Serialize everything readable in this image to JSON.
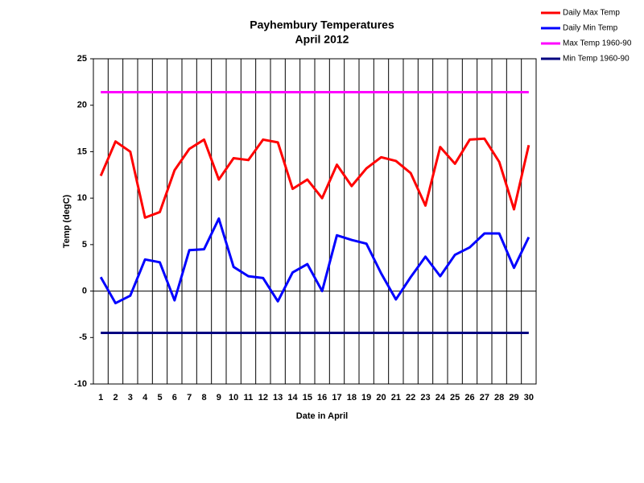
{
  "chart_data": {
    "type": "line",
    "title": "Payhembury Temperatures",
    "subtitle": "April 2012",
    "x_label": "Date in April",
    "y_label": "Temp (degC)",
    "categories": [
      "1",
      "2",
      "3",
      "4",
      "5",
      "6",
      "7",
      "8",
      "9",
      "10",
      "11",
      "12",
      "13",
      "14",
      "15",
      "16",
      "17",
      "18",
      "19",
      "20",
      "21",
      "22",
      "23",
      "24",
      "25",
      "26",
      "27",
      "28",
      "29",
      "30"
    ],
    "series": [
      {
        "name": "Daily Max Temp",
        "color": "#ff0000",
        "values": [
          12.4,
          16.1,
          15.0,
          7.9,
          8.5,
          13.0,
          15.3,
          16.3,
          12.0,
          14.3,
          14.1,
          16.3,
          16.0,
          11.0,
          12.0,
          10.0,
          13.6,
          11.3,
          13.2,
          14.4,
          14.0,
          12.7,
          9.2,
          15.5,
          13.7,
          16.3,
          16.4,
          13.9,
          8.8,
          15.7
        ]
      },
      {
        "name": "Daily Min Temp",
        "color": "#0000ff",
        "values": [
          1.5,
          -1.3,
          -0.5,
          3.4,
          3.1,
          -1.0,
          4.4,
          4.5,
          7.8,
          2.6,
          1.6,
          1.4,
          -1.1,
          2.0,
          2.9,
          0.0,
          6.0,
          5.5,
          5.1,
          1.9,
          -0.9,
          1.5,
          3.7,
          1.6,
          3.9,
          4.7,
          6.2,
          6.2,
          2.5,
          5.8
        ]
      },
      {
        "name": "Max Temp 1960-90",
        "color": "#ff00ff",
        "values": [
          21.4,
          21.4,
          21.4,
          21.4,
          21.4,
          21.4,
          21.4,
          21.4,
          21.4,
          21.4,
          21.4,
          21.4,
          21.4,
          21.4,
          21.4,
          21.4,
          21.4,
          21.4,
          21.4,
          21.4,
          21.4,
          21.4,
          21.4,
          21.4,
          21.4,
          21.4,
          21.4,
          21.4,
          21.4,
          21.4
        ]
      },
      {
        "name": "Min Temp 1960-90",
        "color": "#000080",
        "values": [
          -4.5,
          -4.5,
          -4.5,
          -4.5,
          -4.5,
          -4.5,
          -4.5,
          -4.5,
          -4.5,
          -4.5,
          -4.5,
          -4.5,
          -4.5,
          -4.5,
          -4.5,
          -4.5,
          -4.5,
          -4.5,
          -4.5,
          -4.5,
          -4.5,
          -4.5,
          -4.5,
          -4.5,
          -4.5,
          -4.5,
          -4.5,
          -4.5,
          -4.5,
          -4.5
        ]
      }
    ],
    "ylim": [
      -10,
      25
    ],
    "yticks": [
      -10,
      -5,
      0,
      5,
      10,
      15,
      20,
      25
    ],
    "grid": "x",
    "legend": "top-right"
  }
}
